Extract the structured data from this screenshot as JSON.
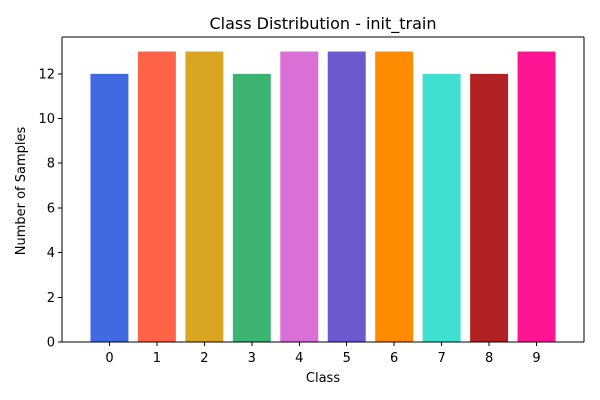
{
  "chart_data": {
    "type": "bar",
    "title": "Class Distribution - init_train",
    "xlabel": "Class",
    "ylabel": "Number of Samples",
    "categories": [
      "0",
      "1",
      "2",
      "3",
      "4",
      "5",
      "6",
      "7",
      "8",
      "9"
    ],
    "values": [
      12,
      13,
      13,
      12,
      13,
      13,
      13,
      12,
      12,
      13
    ],
    "colors": [
      "#4169e1",
      "#ff6347",
      "#daa520",
      "#3cb371",
      "#da70d6",
      "#6a5acd",
      "#ff8c00",
      "#40e0d0",
      "#b22222",
      "#ff1493"
    ],
    "ylim": [
      0,
      13.65
    ],
    "yticks": [
      0,
      2,
      4,
      6,
      8,
      10,
      12
    ],
    "grid": false,
    "legend": "none"
  }
}
